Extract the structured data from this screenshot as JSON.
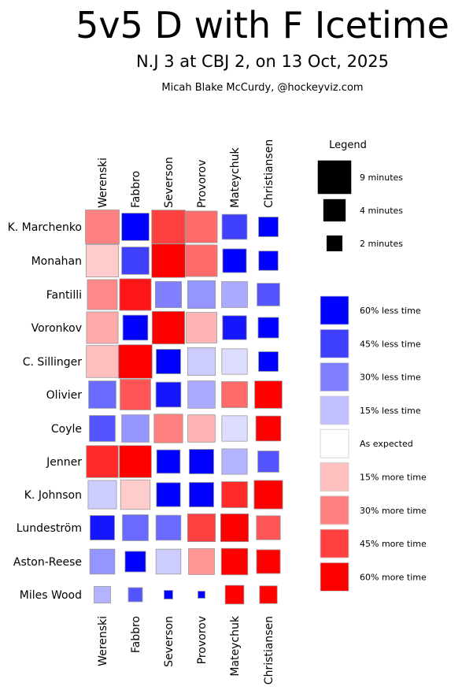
{
  "chart_data": {
    "type": "heatmap",
    "title": "5v5 D with F Icetime",
    "subtitle": "N.J 3 at CBJ 2, on 13 Oct, 2025",
    "credit": "Micah Blake McCurdy, @hockeyviz.com",
    "columns": [
      "Werenski",
      "Fabbro",
      "Severson",
      "Provorov",
      "Mateychuk",
      "Christiansen"
    ],
    "rows": [
      "K. Marchenko",
      "Monahan",
      "Fantilli",
      "Voronkov",
      "C. Sillinger",
      "Olivier",
      "Coyle",
      "Jenner",
      "K. Johnson",
      "Lundeström",
      "Aston-Reese",
      "Miles Wood"
    ],
    "minutes": [
      [
        9.2,
        6.0,
        9.0,
        8.0,
        5.0,
        3.1
      ],
      [
        8.5,
        6.0,
        9.0,
        8.0,
        4.5,
        3.0
      ],
      [
        7.2,
        8.0,
        5.5,
        6.2,
        5.4,
        4.1
      ],
      [
        8.0,
        5.0,
        8.5,
        7.5,
        4.6,
        3.4
      ],
      [
        8.2,
        9.0,
        4.8,
        6.2,
        5.2,
        3.1
      ],
      [
        6.0,
        7.5,
        5.0,
        6.0,
        5.4,
        6.0
      ],
      [
        5.4,
        6.0,
        6.6,
        6.0,
        5.2,
        5.0
      ],
      [
        8.2,
        8.2,
        4.4,
        4.8,
        5.2,
        3.6
      ],
      [
        6.5,
        7.0,
        4.6,
        4.8,
        5.4,
        6.5
      ],
      [
        4.8,
        5.4,
        5.0,
        6.2,
        6.2,
        4.6
      ],
      [
        5.0,
        3.4,
        5.0,
        5.4,
        5.6,
        4.5
      ],
      [
        2.2,
        1.6,
        0.6,
        0.4,
        2.8,
        2.5
      ]
    ],
    "pct_vs_expected": [
      [
        30,
        -60,
        45,
        35,
        -45,
        -100
      ],
      [
        12,
        -45,
        65,
        35,
        -75,
        -100
      ],
      [
        28,
        55,
        -30,
        -25,
        -20,
        -40
      ],
      [
        20,
        -60,
        100,
        18,
        -55,
        -75
      ],
      [
        15,
        100,
        -75,
        -12,
        -8,
        -75
      ],
      [
        -35,
        40,
        -55,
        -20,
        35,
        100
      ],
      [
        -40,
        -25,
        30,
        18,
        -8,
        90
      ],
      [
        50,
        100,
        -75,
        -60,
        -18,
        -40
      ],
      [
        -12,
        12,
        -65,
        -60,
        50,
        100
      ],
      [
        -55,
        -35,
        -35,
        45,
        100,
        40
      ],
      [
        -25,
        -100,
        -12,
        25,
        100,
        90
      ],
      [
        -18,
        -40,
        -100,
        -100,
        100,
        100
      ]
    ],
    "legend": {
      "title": "Legend",
      "size_items": [
        {
          "minutes": 9,
          "label": "9 minutes"
        },
        {
          "minutes": 4,
          "label": "4 minutes"
        },
        {
          "minutes": 2,
          "label": "2 minutes"
        }
      ],
      "color_items": [
        {
          "pct": -60,
          "label": "60% less time",
          "color": "#0000ff"
        },
        {
          "pct": -45,
          "label": "45% less time",
          "color": "#4040ff"
        },
        {
          "pct": -30,
          "label": "30% less time",
          "color": "#8080ff"
        },
        {
          "pct": -15,
          "label": "15% less time",
          "color": "#c0c0ff"
        },
        {
          "pct": 0,
          "label": "As expected",
          "color": "#ffffff"
        },
        {
          "pct": 15,
          "label": "15% more time",
          "color": "#ffc0c0"
        },
        {
          "pct": 30,
          "label": "30% more time",
          "color": "#ff8080"
        },
        {
          "pct": 45,
          "label": "45% more time",
          "color": "#ff4040"
        },
        {
          "pct": 60,
          "label": "60% more time",
          "color": "#ff0000"
        }
      ]
    },
    "max_minutes": 9.2,
    "colors": {
      "more": "#ff0000",
      "less": "#0000ff",
      "neutral": "#ffffff",
      "size_legend": "#000000"
    }
  }
}
